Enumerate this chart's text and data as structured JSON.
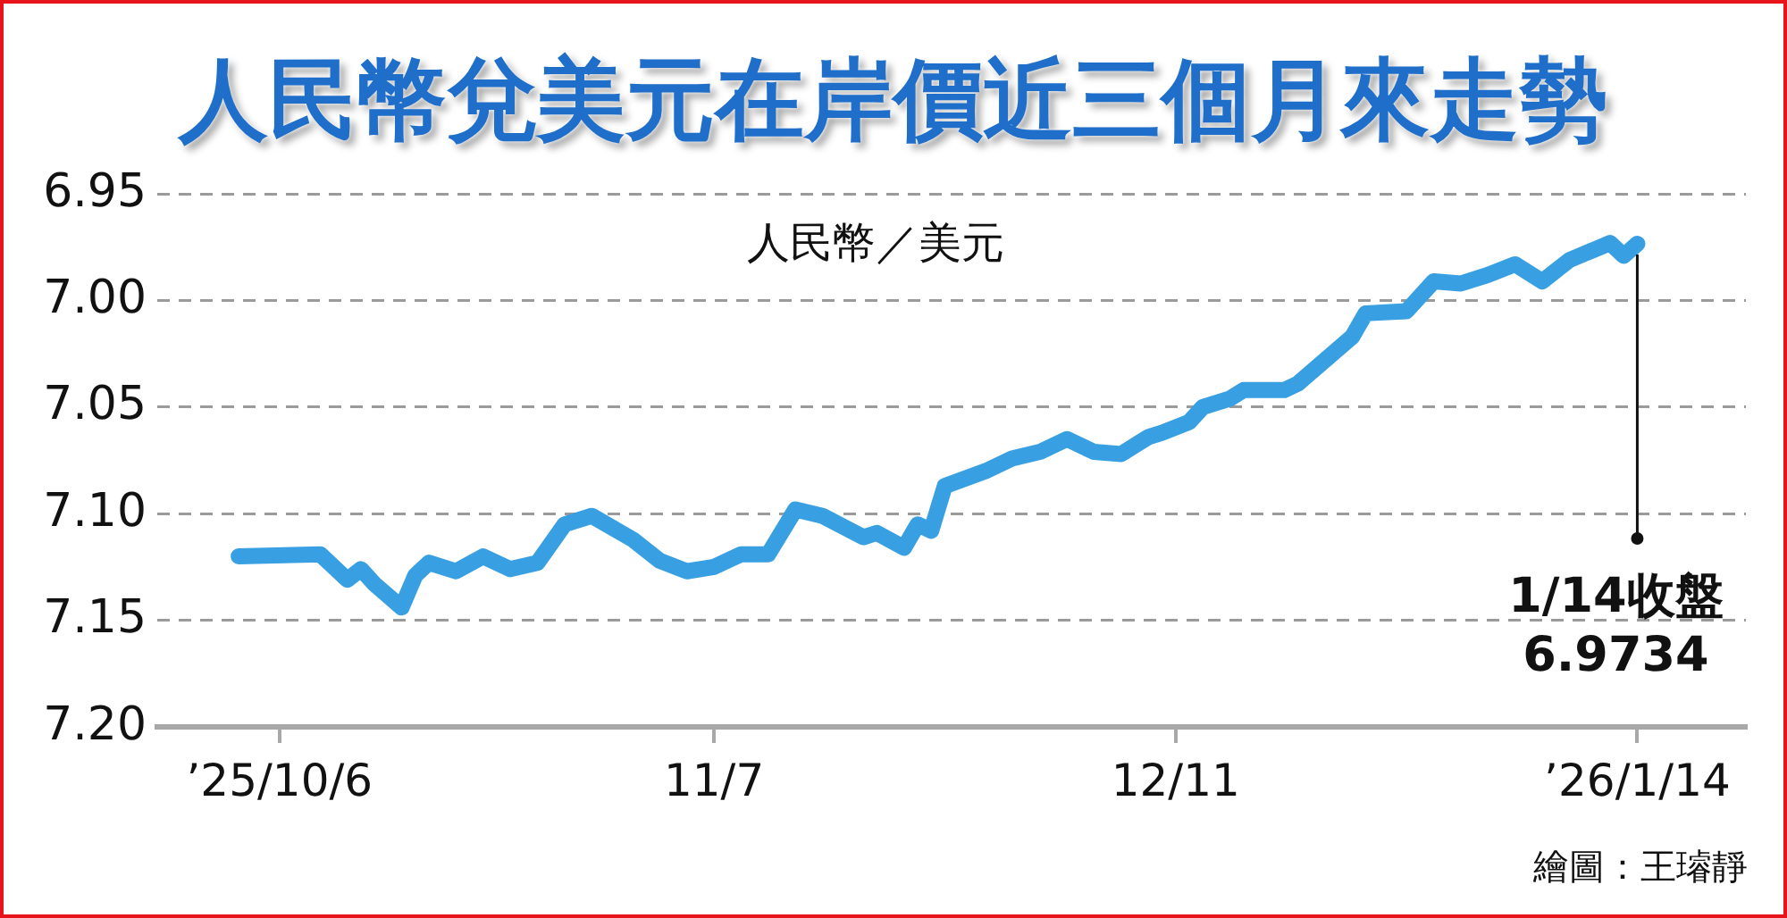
{
  "chart_data": {
    "type": "line",
    "title": "人民幣兌美元在岸價近三個月來走勢",
    "ylabel": "人民幣／美元",
    "x": [
      "2025-10-03",
      "2025-10-09",
      "2025-10-11",
      "2025-10-12",
      "2025-10-13",
      "2025-10-15",
      "2025-10-16",
      "2025-10-17",
      "2025-10-19",
      "2025-10-21",
      "2025-10-23",
      "2025-10-25",
      "2025-10-27",
      "2025-10-29",
      "2025-11-01",
      "2025-11-03",
      "2025-11-05",
      "2025-11-07",
      "2025-11-09",
      "2025-11-11",
      "2025-11-13",
      "2025-11-15",
      "2025-11-18",
      "2025-11-19",
      "2025-11-21",
      "2025-11-22",
      "2025-11-23",
      "2025-11-24",
      "2025-11-27",
      "2025-11-29",
      "2025-12-01",
      "2025-12-03",
      "2025-12-05",
      "2025-12-07",
      "2025-12-09",
      "2025-12-10",
      "2025-12-12",
      "2025-12-13",
      "2025-12-15",
      "2025-12-16",
      "2025-12-19",
      "2025-12-20",
      "2025-12-22",
      "2025-12-24",
      "2025-12-25",
      "2025-12-28",
      "2025-12-30",
      "2026-01-01",
      "2026-01-03",
      "2026-01-05",
      "2026-01-07",
      "2026-01-09",
      "2026-01-12",
      "2026-01-13",
      "2026-01-14"
    ],
    "series": [
      {
        "color": "#38a0e2",
        "values": [
          7.12,
          7.119,
          7.131,
          7.126,
          7.133,
          7.144,
          7.129,
          7.123,
          7.127,
          7.12,
          7.126,
          7.123,
          7.105,
          7.101,
          7.112,
          7.122,
          7.127,
          7.125,
          7.119,
          7.119,
          7.098,
          7.101,
          7.111,
          7.109,
          7.116,
          7.105,
          7.108,
          7.087,
          7.08,
          7.074,
          7.071,
          7.065,
          7.071,
          7.072,
          7.064,
          7.062,
          7.057,
          7.05,
          7.046,
          7.042,
          7.042,
          7.039,
          7.028,
          7.017,
          7.006,
          7.005,
          6.991,
          6.992,
          6.988,
          6.983,
          6.991,
          6.981,
          6.973,
          6.979,
          6.9734
        ]
      }
    ],
    "xlim": [
      "2025-09-27",
      "2026-01-22"
    ],
    "xticks": [
      {
        "value": "2025-10-06",
        "label": "’25/10/6"
      },
      {
        "value": "2025-11-07",
        "label": "11/7"
      },
      {
        "value": "2025-12-11",
        "label": "12/11"
      },
      {
        "value": "2026-01-14",
        "label": "’26/1/14"
      }
    ],
    "ylim": [
      7.2,
      6.95
    ],
    "yticks": [
      6.95,
      {
        "value": 7,
        "label": "7.00"
      },
      7.05,
      {
        "value": 7.1,
        "label": "7.10"
      },
      7.15,
      {
        "value": 7.2,
        "label": "7.20"
      }
    ],
    "grid": "y",
    "marker": "none",
    "line_style": "solid",
    "annotations": [
      {
        "text": "1/14收盤\n6.9734",
        "x": "2026-01-14",
        "y": 6.9734
      },
      "繪圖：王璿靜"
    ]
  }
}
